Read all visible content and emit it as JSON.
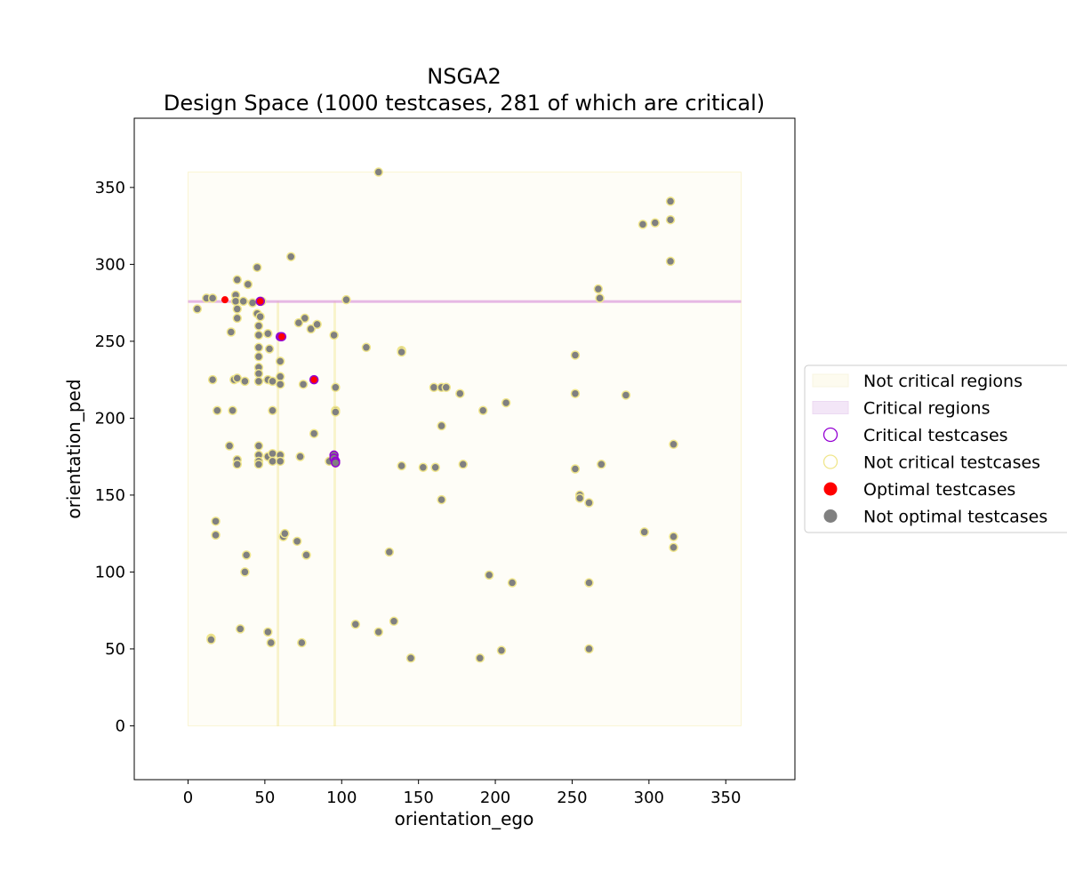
{
  "chart_data": {
    "type": "scatter",
    "title": "NSGA2",
    "subtitle": "Design Space (1000 testcases, 281 of which are critical)",
    "xlabel": "orientation_ego",
    "ylabel": "orientation_ped",
    "xlim": [
      -35,
      395
    ],
    "ylim": [
      -35,
      395
    ],
    "xticks": [
      0,
      50,
      100,
      150,
      200,
      250,
      300,
      350
    ],
    "yticks": [
      0,
      50,
      100,
      150,
      200,
      250,
      300,
      350
    ],
    "grid": false,
    "legend_position": "outside-right",
    "legend": [
      {
        "label": "Not critical regions",
        "kind": "patch",
        "color": "#fdfbef"
      },
      {
        "label": "Critical regions",
        "kind": "patch",
        "color": "#f3e6f7"
      },
      {
        "label": "Critical testcases",
        "kind": "hollow-marker",
        "color": "#9400d3"
      },
      {
        "label": "Not critical testcases",
        "kind": "hollow-marker",
        "color": "#f0e68c"
      },
      {
        "label": "Optimal testcases",
        "kind": "filled-marker",
        "color": "#ff0000"
      },
      {
        "label": "Not optimal testcases",
        "kind": "filled-marker",
        "color": "#808080"
      }
    ],
    "regions": {
      "not_critical": [
        {
          "x": [
            0,
            360
          ],
          "y": [
            0,
            360
          ]
        },
        {
          "x": [
            58,
            59
          ],
          "y": [
            0,
            276
          ]
        },
        {
          "x": [
            95,
            96
          ],
          "y": [
            0,
            276
          ]
        }
      ],
      "critical": [
        {
          "x": [
            0,
            360
          ],
          "y": [
            275.3,
            276.7
          ]
        }
      ]
    },
    "colors": {
      "not_optimal_fill": "#808080",
      "optimal_fill": "#ff0000",
      "not_critical_edge": "#f0e68c",
      "critical_edge": "#9400d3",
      "axes": "#000000"
    },
    "series": [
      {
        "name": "Not optimal testcases",
        "critical": false,
        "optimal": false,
        "points": [
          [
            124,
            360
          ],
          [
            314,
            341
          ],
          [
            296,
            326
          ],
          [
            304,
            327
          ],
          [
            314,
            329
          ],
          [
            314,
            302
          ],
          [
            67,
            305
          ],
          [
            45,
            298
          ],
          [
            32,
            290
          ],
          [
            39,
            287
          ],
          [
            12,
            278
          ],
          [
            16,
            278
          ],
          [
            31,
            280
          ],
          [
            31,
            276
          ],
          [
            36,
            276
          ],
          [
            42,
            275
          ],
          [
            48,
            276
          ],
          [
            103,
            277
          ],
          [
            6,
            271
          ],
          [
            32,
            271
          ],
          [
            45,
            268
          ],
          [
            47,
            266
          ],
          [
            32,
            265
          ],
          [
            46,
            260
          ],
          [
            28,
            256
          ],
          [
            46,
            254
          ],
          [
            52,
            255
          ],
          [
            76,
            265
          ],
          [
            72,
            262
          ],
          [
            80,
            258
          ],
          [
            84,
            261
          ],
          [
            95,
            254
          ],
          [
            267,
            284
          ],
          [
            268,
            278
          ],
          [
            46,
            246
          ],
          [
            53,
            245
          ],
          [
            46,
            240
          ],
          [
            116,
            246
          ],
          [
            139,
            244
          ],
          [
            139,
            243
          ],
          [
            60,
            237
          ],
          [
            46,
            233
          ],
          [
            46,
            229
          ],
          [
            16,
            225
          ],
          [
            30,
            225
          ],
          [
            32,
            226
          ],
          [
            37,
            224
          ],
          [
            46,
            224
          ],
          [
            52,
            225
          ],
          [
            55,
            224
          ],
          [
            60,
            227
          ],
          [
            60,
            222
          ],
          [
            75,
            222
          ],
          [
            96,
            220
          ],
          [
            160,
            220
          ],
          [
            165,
            220
          ],
          [
            168,
            220
          ],
          [
            177,
            216
          ],
          [
            252,
            241
          ],
          [
            252,
            216
          ],
          [
            285,
            215
          ],
          [
            207,
            210
          ],
          [
            19,
            205
          ],
          [
            29,
            205
          ],
          [
            55,
            205
          ],
          [
            96,
            205
          ],
          [
            96,
            204
          ],
          [
            192,
            205
          ],
          [
            165,
            195
          ],
          [
            82,
            190
          ],
          [
            27,
            182
          ],
          [
            46,
            182
          ],
          [
            316,
            183
          ],
          [
            32,
            173
          ],
          [
            32,
            170
          ],
          [
            46,
            176
          ],
          [
            46,
            172
          ],
          [
            46,
            170
          ],
          [
            52,
            175
          ],
          [
            55,
            177
          ],
          [
            55,
            172
          ],
          [
            60,
            176
          ],
          [
            60,
            172
          ],
          [
            73,
            175
          ],
          [
            92,
            172
          ],
          [
            139,
            169
          ],
          [
            153,
            168
          ],
          [
            161,
            168
          ],
          [
            179,
            170
          ],
          [
            252,
            167
          ],
          [
            269,
            170
          ],
          [
            255,
            150
          ],
          [
            255,
            148
          ],
          [
            261,
            145
          ],
          [
            165,
            147
          ],
          [
            18,
            133
          ],
          [
            18,
            124
          ],
          [
            62,
            123
          ],
          [
            63,
            125
          ],
          [
            71,
            120
          ],
          [
            77,
            111
          ],
          [
            38,
            111
          ],
          [
            37,
            100
          ],
          [
            297,
            126
          ],
          [
            316,
            123
          ],
          [
            316,
            116
          ],
          [
            131,
            113
          ],
          [
            196,
            98
          ],
          [
            211,
            93
          ],
          [
            261,
            93
          ],
          [
            15,
            57
          ],
          [
            15,
            56
          ],
          [
            34,
            63
          ],
          [
            52,
            61
          ],
          [
            54,
            54
          ],
          [
            74,
            54
          ],
          [
            109,
            66
          ],
          [
            124,
            61
          ],
          [
            134,
            68
          ],
          [
            145,
            44
          ],
          [
            190,
            44
          ],
          [
            204,
            49
          ],
          [
            261,
            50
          ]
        ]
      },
      {
        "name": "Critical testcases",
        "critical": true,
        "optimal": false,
        "points": [
          [
            95,
            176
          ],
          [
            95,
            174
          ],
          [
            96,
            172
          ],
          [
            96,
            171
          ],
          [
            60,
            253
          ]
        ]
      },
      {
        "name": "Optimal testcases",
        "critical": false,
        "optimal": true,
        "points": [
          [
            24,
            277
          ],
          [
            47,
            276
          ]
        ]
      },
      {
        "name": "Optimal critical testcases",
        "critical": true,
        "optimal": true,
        "points": [
          [
            47,
            276
          ],
          [
            61,
            253
          ],
          [
            82,
            225
          ]
        ]
      }
    ]
  }
}
